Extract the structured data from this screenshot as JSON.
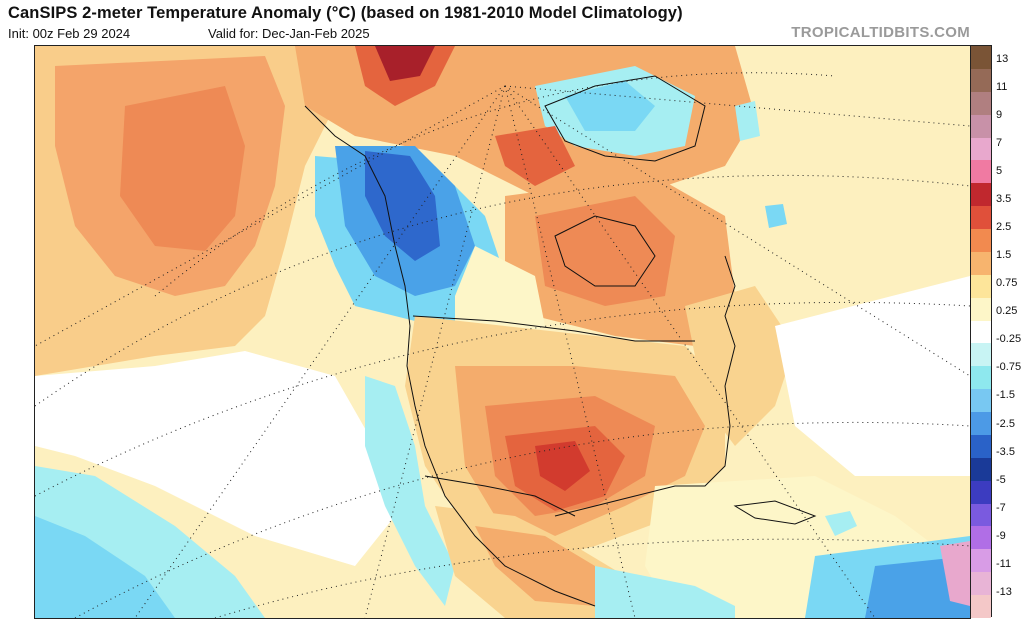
{
  "header": {
    "title": "CanSIPS 2-meter Temperature Anomaly (°C) (based on 1981-2010 Model Climatology)",
    "init": "Init: 00z Feb 29 2024",
    "valid": "Valid for: Dec-Jan-Feb 2025",
    "brand": "TROPICALTIDBITS.COM"
  },
  "legend": {
    "labels": [
      "13",
      "11",
      "9",
      "7",
      "5",
      "3.5",
      "2.5",
      "1.5",
      "0.75",
      "0.25",
      "-0.25",
      "-0.75",
      "-1.5",
      "-2.5",
      "-3.5",
      "-5",
      "-7",
      "-9",
      "-11",
      "-13"
    ],
    "colors": [
      "#7a5436",
      "#956a57",
      "#b07f80",
      "#c891a8",
      "#e8a8cd",
      "#f07aa2",
      "#c0282e",
      "#e0503a",
      "#f28a4f",
      "#f7b46e",
      "#fde59a",
      "#fdf6c8",
      "#ffffff",
      "#c8f4f4",
      "#8ee8ee",
      "#78c8f2",
      "#4c9ae6",
      "#2a62c8",
      "#1a3a98",
      "#3c3cc0",
      "#7a5adf",
      "#b06ee6",
      "#d89ce6",
      "#e8b4d6",
      "#f4c8c8"
    ]
  },
  "map": {
    "colors": {
      "ocean_warm_light": "#fdf0bf",
      "ocean_warm": "#f9d38f",
      "warm": "#f4ac6c",
      "warmer": "#ee8a55",
      "hot": "#e4643e",
      "hotter": "#d23b2e",
      "hottest": "#a8202a",
      "neutral": "#ffffff",
      "cool_light": "#a6eef2",
      "cool": "#7ad8f4",
      "cold": "#4aa2e8",
      "colder": "#2e68cc",
      "coldest": "#1e4aa8"
    }
  }
}
